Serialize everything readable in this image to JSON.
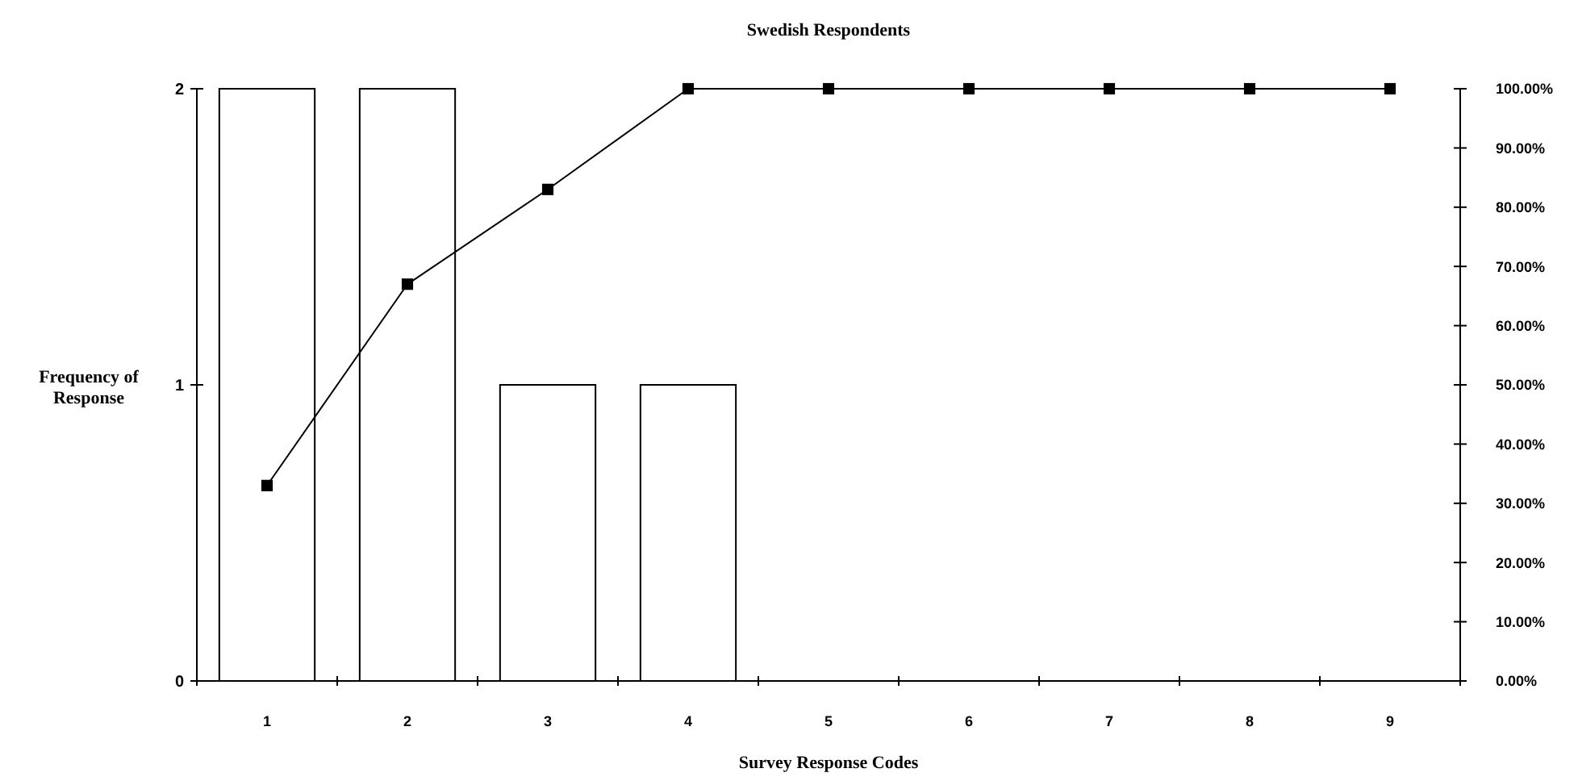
{
  "chart_data": {
    "type": "bar",
    "title": "Swedish Respondents",
    "xlabel": "Survey Response Codes",
    "ylabel": "Frequency of Response",
    "categories": [
      "1",
      "2",
      "3",
      "4",
      "5",
      "6",
      "7",
      "8",
      "9"
    ],
    "series": [
      {
        "color": "#ffffff",
        "values": [
          2,
          2,
          1,
          1,
          0,
          0,
          0,
          0,
          0
        ]
      },
      {
        "type": "line",
        "axis": "y2",
        "color": "#000000",
        "values": [
          33,
          67,
          83,
          100,
          100,
          100,
          100,
          100,
          100
        ]
      }
    ],
    "ylim": [
      0,
      2
    ],
    "yticks": [
      0,
      1,
      2
    ],
    "y2lim": [
      0,
      100
    ],
    "y2ticks": [
      {
        "value": 0,
        "label": "0.00%"
      },
      {
        "value": 10,
        "label": "10.00%"
      },
      {
        "value": 20,
        "label": "20.00%"
      },
      {
        "value": 30,
        "label": "30.00%"
      },
      {
        "value": 40,
        "label": "40.00%"
      },
      {
        "value": 50,
        "label": "50.00%"
      },
      {
        "value": 60,
        "label": "60.00%"
      },
      {
        "value": 70,
        "label": "70.00%"
      },
      {
        "value": 80,
        "label": "80.00%"
      },
      {
        "value": 90,
        "label": "90.00%"
      },
      {
        "value": 100,
        "label": "100.00%"
      }
    ],
    "marker": "square",
    "grid": false
  }
}
